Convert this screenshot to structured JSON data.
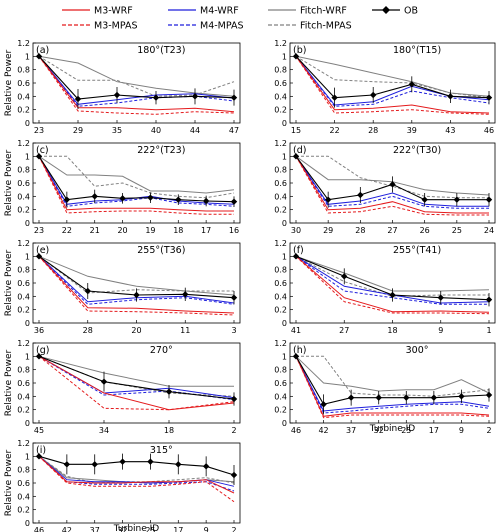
{
  "legend": {
    "items": [
      {
        "key": "m3wrf",
        "label": "M3-WRF",
        "color": "#e41a1c",
        "dash": "solid",
        "marker": "none"
      },
      {
        "key": "m4wrf",
        "label": "M4-WRF",
        "color": "#1f1fdc",
        "dash": "solid",
        "marker": "none"
      },
      {
        "key": "fitwrf",
        "label": "Fitch-WRF",
        "color": "#808080",
        "dash": "solid",
        "marker": "none"
      },
      {
        "key": "ob",
        "label": "OB",
        "color": "#000000",
        "dash": "solid",
        "marker": "diamond"
      },
      {
        "key": "m3mpas",
        "label": "M3-MPAS",
        "color": "#e41a1c",
        "dash": "dashed",
        "marker": "none"
      },
      {
        "key": "m4mpas",
        "label": "M4-MPAS",
        "color": "#1f1fdc",
        "dash": "dashed",
        "marker": "none"
      },
      {
        "key": "fitmpas",
        "label": "Fitch-MPAS",
        "color": "#808080",
        "dash": "dashed",
        "marker": "none"
      }
    ]
  },
  "chart_data": {
    "type": "line",
    "ylabel": "Relative Power",
    "xlabel": "Turbine ID",
    "ylim": [
      0,
      1.2
    ],
    "yticks": [
      "0",
      "0.2",
      "0.4",
      "0.6",
      "0.8",
      "1",
      "1.2"
    ],
    "panels": [
      {
        "label": "(a)",
        "title": "180°(T23)",
        "categories": [
          "23",
          "29",
          "35",
          "40",
          "44",
          "47"
        ],
        "series": {
          "m3wrf": [
            1,
            0.23,
            0.23,
            0.2,
            0.22,
            0.17
          ],
          "m4wrf": [
            1,
            0.28,
            0.35,
            0.42,
            0.44,
            0.37
          ],
          "fitwrf": [
            1,
            0.9,
            0.62,
            0.52,
            0.45,
            0.4
          ],
          "m3mpas": [
            1,
            0.18,
            0.15,
            0.13,
            0.17,
            0.15
          ],
          "m4mpas": [
            1,
            0.25,
            0.3,
            0.38,
            0.4,
            0.33
          ],
          "fitmpas": [
            1,
            0.64,
            0.64,
            0.4,
            0.42,
            0.62
          ],
          "ob": [
            1,
            0.36,
            0.42,
            0.38,
            0.4,
            0.38
          ],
          "oberr": [
            0,
            0.15,
            0.12,
            0.1,
            0.12,
            0.12
          ]
        }
      },
      {
        "label": "(b)",
        "title": "180°(T15)",
        "categories": [
          "15",
          "22",
          "28",
          "39",
          "43",
          "46"
        ],
        "series": {
          "m3wrf": [
            1,
            0.2,
            0.22,
            0.27,
            0.17,
            0.15
          ],
          "m4wrf": [
            1,
            0.27,
            0.32,
            0.55,
            0.4,
            0.35
          ],
          "fitwrf": [
            1,
            0.88,
            0.75,
            0.62,
            0.45,
            0.4
          ],
          "m3mpas": [
            1,
            0.15,
            0.17,
            0.2,
            0.15,
            0.13
          ],
          "m4mpas": [
            1,
            0.25,
            0.28,
            0.48,
            0.38,
            0.3
          ],
          "fitmpas": [
            1,
            0.65,
            0.62,
            0.6,
            0.45,
            0.38
          ],
          "ob": [
            1,
            0.38,
            0.42,
            0.58,
            0.4,
            0.38
          ],
          "oberr": [
            0,
            0.15,
            0.12,
            0.12,
            0.1,
            0.1
          ]
        }
      },
      {
        "label": "(c)",
        "title": "222°(T23)",
        "categories": [
          "23",
          "22",
          "21",
          "20",
          "19",
          "18",
          "17",
          "16"
        ],
        "series": {
          "m3wrf": [
            1,
            0.2,
            0.22,
            0.22,
            0.22,
            0.2,
            0.18,
            0.18
          ],
          "m4wrf": [
            1,
            0.28,
            0.33,
            0.35,
            0.4,
            0.33,
            0.3,
            0.28
          ],
          "fitwrf": [
            1,
            0.72,
            0.72,
            0.7,
            0.48,
            0.48,
            0.45,
            0.5
          ],
          "m3mpas": [
            1,
            0.15,
            0.17,
            0.18,
            0.18,
            0.15,
            0.13,
            0.13
          ],
          "m4mpas": [
            1,
            0.25,
            0.3,
            0.33,
            0.38,
            0.3,
            0.28,
            0.25
          ],
          "fitmpas": [
            1,
            1.0,
            0.55,
            0.6,
            0.45,
            0.4,
            0.38,
            0.45
          ],
          "ob": [
            1,
            0.35,
            0.4,
            0.37,
            0.38,
            0.35,
            0.33,
            0.32
          ],
          "oberr": [
            0,
            0.12,
            0.1,
            0.08,
            0.08,
            0.08,
            0.08,
            0.08
          ]
        }
      },
      {
        "label": "(d)",
        "title": "222°(T30)",
        "categories": [
          "30",
          "29",
          "28",
          "27",
          "26",
          "25",
          "24"
        ],
        "series": {
          "m3wrf": [
            1,
            0.2,
            0.22,
            0.32,
            0.17,
            0.15,
            0.15
          ],
          "m4wrf": [
            1,
            0.28,
            0.33,
            0.45,
            0.28,
            0.25,
            0.25
          ],
          "fitwrf": [
            1,
            0.65,
            0.65,
            0.62,
            0.5,
            0.45,
            0.42
          ],
          "m3mpas": [
            1,
            0.15,
            0.17,
            0.25,
            0.13,
            0.12,
            0.12
          ],
          "m4mpas": [
            1,
            0.25,
            0.28,
            0.4,
            0.25,
            0.22,
            0.22
          ],
          "fitmpas": [
            1,
            1.0,
            0.68,
            0.55,
            0.4,
            0.38,
            0.38
          ],
          "ob": [
            1,
            0.35,
            0.42,
            0.58,
            0.35,
            0.35,
            0.35
          ],
          "oberr": [
            0,
            0.12,
            0.12,
            0.12,
            0.1,
            0.1,
            0.1
          ]
        }
      },
      {
        "label": "(e)",
        "title": "255°(T36)",
        "categories": [
          "36",
          "28",
          "20",
          "11",
          "3"
        ],
        "series": {
          "m3wrf": [
            1,
            0.23,
            0.22,
            0.18,
            0.15
          ],
          "m4wrf": [
            1,
            0.32,
            0.38,
            0.4,
            0.3
          ],
          "fitwrf": [
            1,
            0.7,
            0.55,
            0.48,
            0.42
          ],
          "m3mpas": [
            1,
            0.18,
            0.17,
            0.15,
            0.12
          ],
          "m4mpas": [
            1,
            0.28,
            0.35,
            0.38,
            0.28
          ],
          "fitmpas": [
            1,
            0.45,
            0.5,
            0.48,
            0.48
          ],
          "ob": [
            1,
            0.48,
            0.42,
            0.43,
            0.38
          ],
          "oberr": [
            0,
            0.12,
            0.1,
            0.1,
            0.1
          ]
        }
      },
      {
        "label": "(f)",
        "title": "255°(T41)",
        "categories": [
          "41",
          "27",
          "18",
          "9",
          "1"
        ],
        "series": {
          "m3wrf": [
            1,
            0.38,
            0.17,
            0.18,
            0.16
          ],
          "m4wrf": [
            1,
            0.55,
            0.42,
            0.3,
            0.32
          ],
          "fitwrf": [
            1,
            0.75,
            0.48,
            0.48,
            0.5
          ],
          "m3mpas": [
            1,
            0.32,
            0.15,
            0.15,
            0.14
          ],
          "m4mpas": [
            1,
            0.48,
            0.38,
            0.28,
            0.28
          ],
          "fitmpas": [
            1,
            0.62,
            0.4,
            0.42,
            0.42
          ],
          "ob": [
            1,
            0.7,
            0.42,
            0.38,
            0.35
          ],
          "oberr": [
            0,
            0.12,
            0.1,
            0.1,
            0.1
          ]
        }
      },
      {
        "label": "(g)",
        "title": "270°",
        "categories": [
          "45",
          "34",
          "18",
          "2"
        ],
        "series": {
          "m3wrf": [
            1,
            0.45,
            0.2,
            0.3
          ],
          "m4wrf": [
            1,
            0.45,
            0.52,
            0.38
          ],
          "fitwrf": [
            1,
            0.75,
            0.55,
            0.55
          ],
          "m3mpas": [
            1,
            0.22,
            0.2,
            0.32
          ],
          "m4mpas": [
            1,
            0.42,
            0.48,
            0.35
          ],
          "fitmpas": [
            1,
            0.62,
            0.45,
            0.4
          ],
          "ob": [
            1,
            0.62,
            0.47,
            0.36
          ],
          "oberr": [
            0,
            0.15,
            0.1,
            0.1
          ]
        }
      },
      {
        "label": "(h)",
        "title": "300°",
        "categories": [
          "46",
          "42",
          "37",
          "32",
          "25",
          "17",
          "9",
          "2"
        ],
        "series": {
          "m3wrf": [
            1,
            0.1,
            0.15,
            0.15,
            0.15,
            0.15,
            0.15,
            0.12
          ],
          "m4wrf": [
            1,
            0.18,
            0.22,
            0.25,
            0.28,
            0.3,
            0.32,
            0.25
          ],
          "fitwrf": [
            1,
            0.6,
            0.55,
            0.48,
            0.5,
            0.5,
            0.65,
            0.45
          ],
          "m3mpas": [
            1,
            0.08,
            0.12,
            0.12,
            0.12,
            0.12,
            0.12,
            0.1
          ],
          "m4mpas": [
            1,
            0.15,
            0.18,
            0.22,
            0.25,
            0.28,
            0.28,
            0.22
          ],
          "fitmpas": [
            1,
            1.0,
            0.45,
            0.42,
            0.42,
            0.4,
            0.45,
            0.5
          ],
          "ob": [
            1,
            0.28,
            0.38,
            0.38,
            0.38,
            0.38,
            0.4,
            0.42
          ],
          "oberr": [
            0,
            0.15,
            0.12,
            0.1,
            0.1,
            0.1,
            0.1,
            0.1
          ]
        }
      },
      {
        "label": "(i)",
        "title": "315°",
        "categories": [
          "46",
          "42",
          "37",
          "32",
          "25",
          "17",
          "9",
          "2"
        ],
        "series": {
          "m3wrf": [
            1,
            0.62,
            0.6,
            0.6,
            0.62,
            0.62,
            0.65,
            0.45
          ],
          "m4wrf": [
            1,
            0.65,
            0.62,
            0.62,
            0.6,
            0.62,
            0.65,
            0.55
          ],
          "fitwrf": [
            1,
            0.68,
            0.65,
            0.62,
            0.6,
            0.62,
            0.65,
            0.62
          ],
          "m3mpas": [
            1,
            0.6,
            0.55,
            0.55,
            0.55,
            0.58,
            0.62,
            0.32
          ],
          "m4mpas": [
            1,
            0.62,
            0.58,
            0.58,
            0.58,
            0.6,
            0.62,
            0.48
          ],
          "fitmpas": [
            1,
            0.7,
            0.6,
            0.62,
            0.62,
            0.65,
            0.68,
            0.6
          ],
          "ob": [
            1,
            0.88,
            0.88,
            0.92,
            0.92,
            0.88,
            0.85,
            0.72
          ],
          "oberr": [
            0,
            0.15,
            0.15,
            0.12,
            0.12,
            0.15,
            0.15,
            0.15
          ]
        }
      }
    ]
  }
}
